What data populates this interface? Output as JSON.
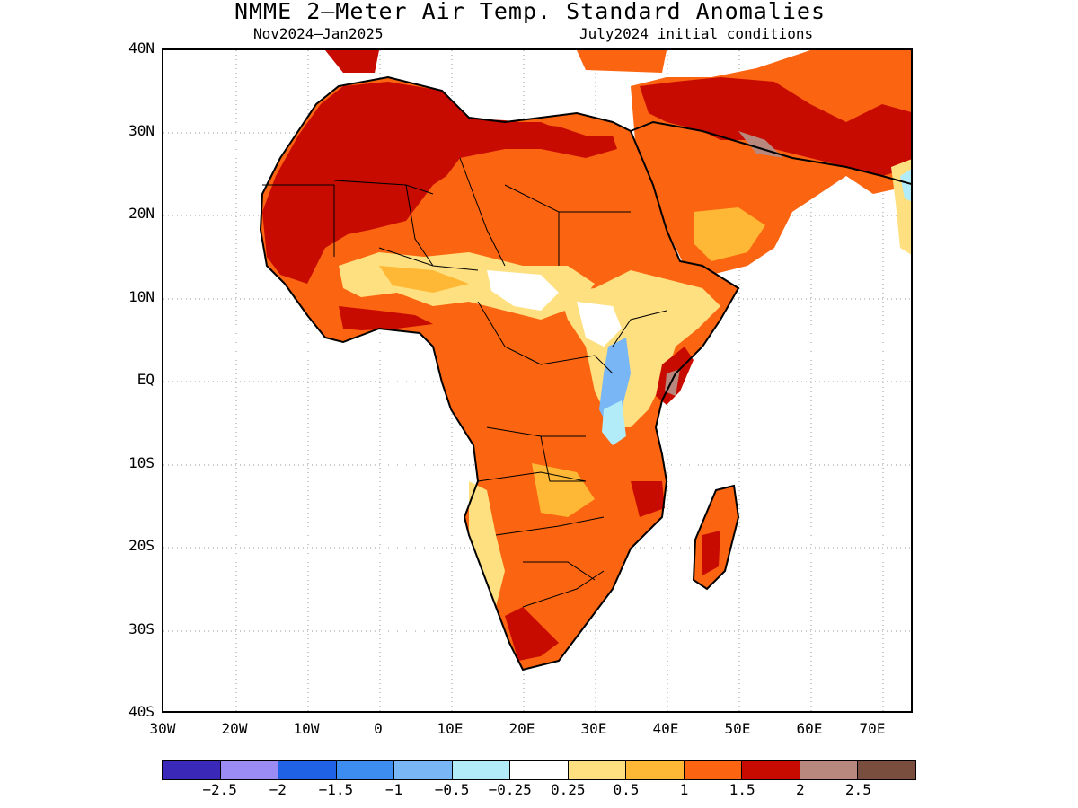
{
  "title": "NMME 2—Meter Air Temp. Standard Anomalies",
  "subtitle_left": "Nov2024—Jan2025",
  "subtitle_right": "July2024 initial conditions",
  "map": {
    "region": "Africa",
    "lat_labels": [
      "40N",
      "30N",
      "20N",
      "10N",
      "EQ",
      "10S",
      "20S",
      "30S",
      "40S"
    ],
    "lon_labels": [
      "30W",
      "20W",
      "10W",
      "0",
      "10E",
      "20E",
      "30E",
      "40E",
      "50E",
      "60E",
      "70E"
    ]
  },
  "colorbar": {
    "colors": [
      "#3a29b8",
      "#9b8cf5",
      "#1f62e6",
      "#3d8df0",
      "#79b6f5",
      "#b1ecf8",
      "#ffffff",
      "#ffe080",
      "#ffb835",
      "#fb6410",
      "#c80b00",
      "#b8877d",
      "#7a4e3f"
    ],
    "labels": [
      "−2.5",
      "−2",
      "−1.5",
      "−1",
      "−0.5",
      "−0.25",
      "0.25",
      "0.5",
      "1",
      "1.5",
      "2",
      "2.5"
    ]
  }
}
